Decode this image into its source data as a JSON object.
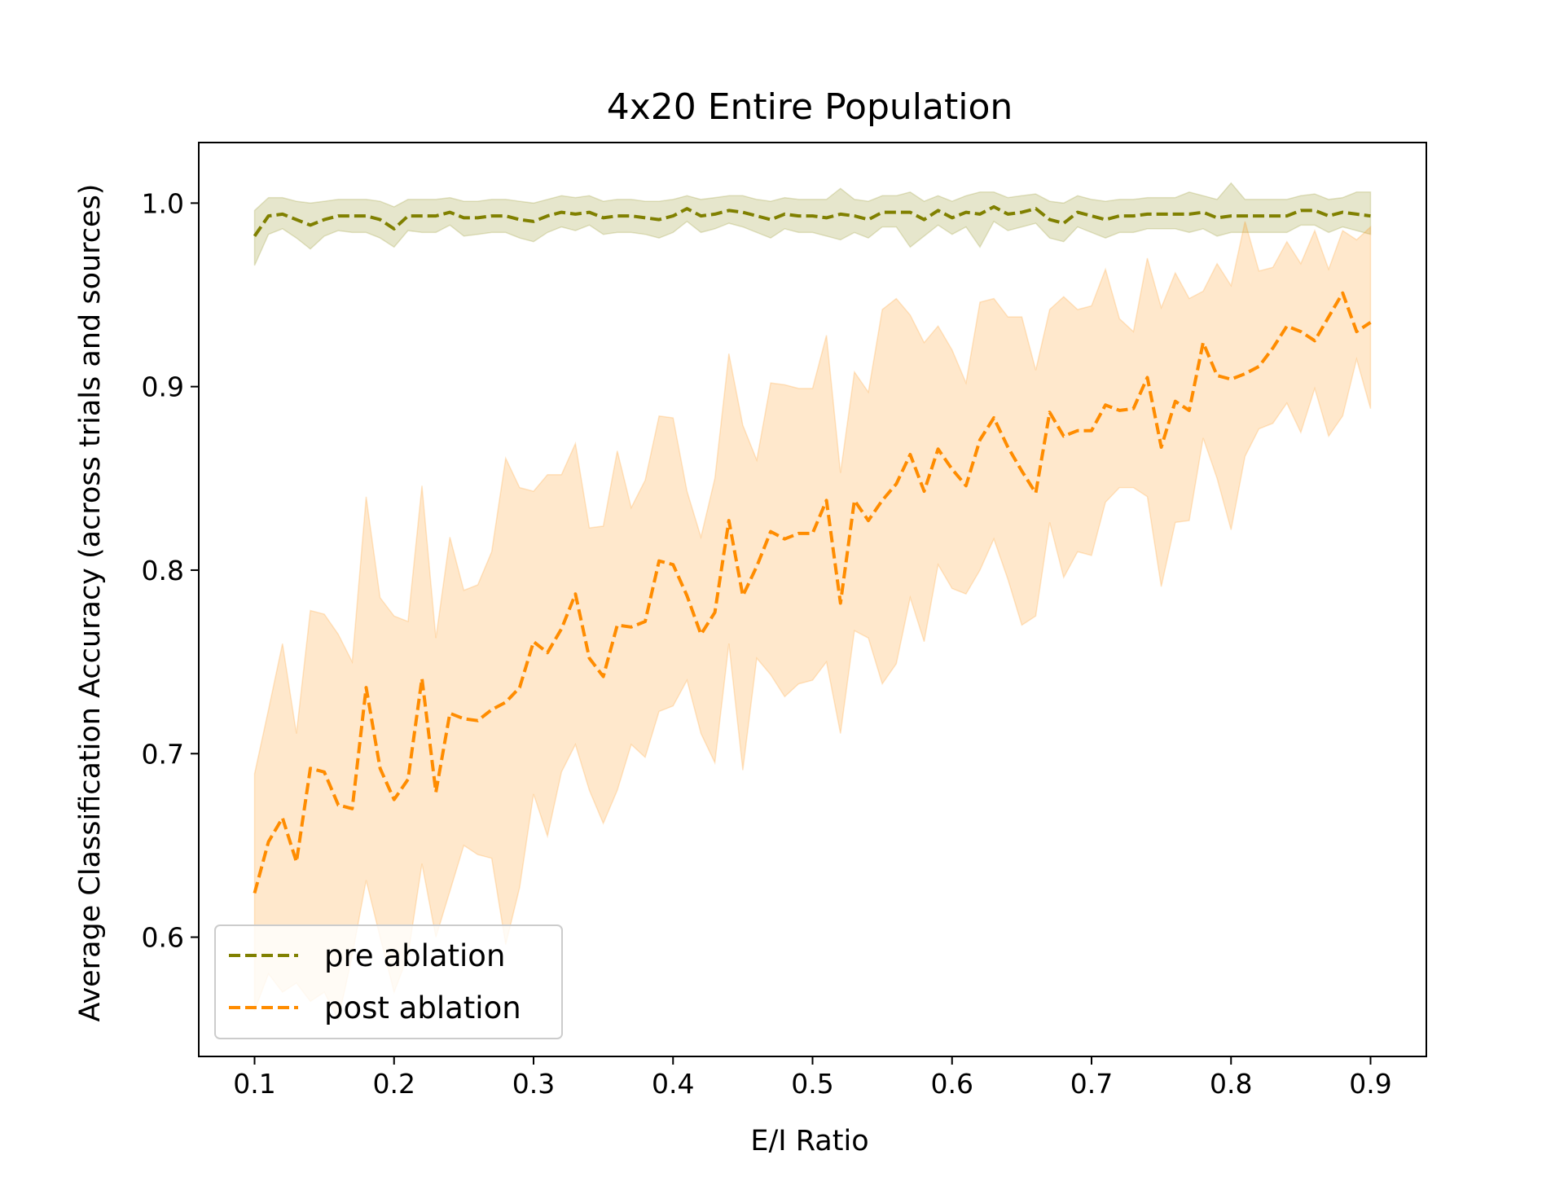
{
  "chart_data": {
    "type": "line",
    "title": "4x20 Entire Population",
    "xlabel": "E/I Ratio",
    "ylabel": "Average Classification Accuracy (across trials and sources)",
    "xlim": [
      0.06,
      0.94
    ],
    "ylim": [
      0.535,
      1.033
    ],
    "xticks": [
      "0.1",
      "0.2",
      "0.3",
      "0.4",
      "0.5",
      "0.6",
      "0.7",
      "0.8",
      "0.9"
    ],
    "yticks": [
      "0.6",
      "0.7",
      "0.8",
      "0.9",
      "1.0"
    ],
    "grid": false,
    "legend_position": "lower-left",
    "colors": {
      "pre": "#808000",
      "post": "#ff8c00"
    },
    "x": [
      0.1,
      0.11,
      0.12,
      0.13,
      0.14,
      0.15,
      0.16,
      0.17,
      0.18,
      0.19,
      0.2,
      0.21,
      0.22,
      0.23,
      0.24,
      0.25,
      0.26,
      0.27,
      0.28,
      0.29,
      0.3,
      0.31,
      0.32,
      0.33,
      0.34,
      0.35,
      0.36,
      0.37,
      0.38,
      0.39,
      0.4,
      0.41,
      0.42,
      0.43,
      0.44,
      0.45,
      0.46,
      0.47,
      0.48,
      0.49,
      0.5,
      0.51,
      0.52,
      0.53,
      0.54,
      0.55,
      0.56,
      0.57,
      0.58,
      0.59,
      0.6,
      0.61,
      0.62,
      0.63,
      0.64,
      0.65,
      0.66,
      0.67,
      0.68,
      0.69,
      0.7,
      0.71,
      0.72,
      0.73,
      0.74,
      0.75,
      0.76,
      0.77,
      0.78,
      0.79,
      0.8,
      0.81,
      0.82,
      0.83,
      0.84,
      0.85,
      0.86,
      0.87,
      0.88,
      0.89,
      0.9
    ],
    "series": [
      {
        "name": "pre ablation",
        "style": "dashed",
        "values": [
          0.982,
          0.993,
          0.994,
          0.991,
          0.988,
          0.991,
          0.993,
          0.993,
          0.993,
          0.991,
          0.986,
          0.993,
          0.993,
          0.993,
          0.995,
          0.992,
          0.992,
          0.993,
          0.993,
          0.991,
          0.99,
          0.993,
          0.995,
          0.994,
          0.995,
          0.992,
          0.993,
          0.993,
          0.992,
          0.991,
          0.993,
          0.997,
          0.993,
          0.994,
          0.996,
          0.995,
          0.993,
          0.991,
          0.994,
          0.993,
          0.993,
          0.992,
          0.994,
          0.993,
          0.991,
          0.995,
          0.995,
          0.995,
          0.991,
          0.996,
          0.992,
          0.995,
          0.994,
          0.998,
          0.994,
          0.995,
          0.997,
          0.991,
          0.989,
          0.995,
          0.993,
          0.991,
          0.993,
          0.993,
          0.994,
          0.994,
          0.994,
          0.994,
          0.995,
          0.992,
          0.993,
          0.993,
          0.993,
          0.993,
          0.993,
          0.996,
          0.996,
          0.993,
          0.995,
          0.994,
          0.993
        ],
        "lower": [
          0.966,
          0.983,
          0.986,
          0.981,
          0.975,
          0.982,
          0.985,
          0.984,
          0.984,
          0.981,
          0.976,
          0.985,
          0.984,
          0.984,
          0.988,
          0.982,
          0.983,
          0.984,
          0.984,
          0.981,
          0.979,
          0.984,
          0.987,
          0.985,
          0.988,
          0.983,
          0.984,
          0.984,
          0.983,
          0.981,
          0.984,
          0.99,
          0.984,
          0.986,
          0.989,
          0.987,
          0.984,
          0.981,
          0.986,
          0.984,
          0.984,
          0.982,
          0.98,
          0.984,
          0.981,
          0.987,
          0.987,
          0.976,
          0.982,
          0.988,
          0.983,
          0.987,
          0.976,
          0.99,
          0.985,
          0.987,
          0.989,
          0.981,
          0.979,
          0.987,
          0.984,
          0.981,
          0.984,
          0.984,
          0.986,
          0.986,
          0.986,
          0.984,
          0.986,
          0.982,
          0.984,
          0.984,
          0.984,
          0.984,
          0.984,
          0.988,
          0.988,
          0.984,
          0.987,
          0.985,
          0.983
        ],
        "upper": [
          0.996,
          1.003,
          1.003,
          1.001,
          1.0,
          1.001,
          1.002,
          1.002,
          1.002,
          1.001,
          0.998,
          1.002,
          1.002,
          1.002,
          1.003,
          1.001,
          1.001,
          1.002,
          1.002,
          1.001,
          1.0,
          1.002,
          1.004,
          1.003,
          1.004,
          1.001,
          1.002,
          1.002,
          1.001,
          1.001,
          1.002,
          1.004,
          1.002,
          1.003,
          1.004,
          1.004,
          1.002,
          1.001,
          1.003,
          1.002,
          1.002,
          1.002,
          1.008,
          1.002,
          1.001,
          1.004,
          1.004,
          1.006,
          1.001,
          1.004,
          1.001,
          1.004,
          1.006,
          1.006,
          1.003,
          1.004,
          1.005,
          1.001,
          1.0,
          1.004,
          1.002,
          1.001,
          1.002,
          1.002,
          1.003,
          1.003,
          1.003,
          1.006,
          1.004,
          1.002,
          1.011,
          1.002,
          1.002,
          1.002,
          1.002,
          1.004,
          1.005,
          1.002,
          1.003,
          1.006,
          1.006
        ]
      },
      {
        "name": "post ablation",
        "style": "dashed",
        "values": [
          0.624,
          0.652,
          0.665,
          0.641,
          0.692,
          0.69,
          0.672,
          0.67,
          0.736,
          0.692,
          0.675,
          0.686,
          0.741,
          0.679,
          0.722,
          0.719,
          0.718,
          0.724,
          0.728,
          0.736,
          0.761,
          0.755,
          0.768,
          0.787,
          0.752,
          0.742,
          0.77,
          0.769,
          0.772,
          0.805,
          0.803,
          0.786,
          0.765,
          0.777,
          0.827,
          0.786,
          0.802,
          0.821,
          0.817,
          0.82,
          0.82,
          0.838,
          0.782,
          0.838,
          0.827,
          0.838,
          0.847,
          0.863,
          0.843,
          0.866,
          0.855,
          0.846,
          0.871,
          0.883,
          0.867,
          0.854,
          0.842,
          0.886,
          0.873,
          0.876,
          0.876,
          0.89,
          0.887,
          0.888,
          0.905,
          0.867,
          0.892,
          0.887,
          0.924,
          0.906,
          0.904,
          0.907,
          0.911,
          0.921,
          0.933,
          0.93,
          0.925,
          0.938,
          0.951,
          0.93,
          0.935
        ],
        "lower": [
          0.56,
          0.58,
          0.57,
          0.575,
          0.565,
          0.57,
          0.555,
          0.59,
          0.631,
          0.6,
          0.57,
          0.59,
          0.64,
          0.6,
          0.625,
          0.65,
          0.645,
          0.643,
          0.596,
          0.627,
          0.678,
          0.655,
          0.69,
          0.705,
          0.68,
          0.662,
          0.68,
          0.705,
          0.698,
          0.723,
          0.726,
          0.74,
          0.711,
          0.695,
          0.76,
          0.691,
          0.752,
          0.743,
          0.731,
          0.738,
          0.74,
          0.75,
          0.711,
          0.767,
          0.763,
          0.738,
          0.749,
          0.785,
          0.761,
          0.803,
          0.79,
          0.787,
          0.8,
          0.817,
          0.795,
          0.77,
          0.775,
          0.826,
          0.796,
          0.81,
          0.808,
          0.837,
          0.845,
          0.845,
          0.84,
          0.791,
          0.826,
          0.827,
          0.872,
          0.85,
          0.822,
          0.862,
          0.877,
          0.88,
          0.891,
          0.875,
          0.899,
          0.873,
          0.884,
          0.915,
          0.888
        ],
        "upper": [
          0.689,
          0.724,
          0.76,
          0.711,
          0.778,
          0.776,
          0.765,
          0.75,
          0.84,
          0.785,
          0.775,
          0.772,
          0.846,
          0.763,
          0.818,
          0.789,
          0.792,
          0.81,
          0.861,
          0.845,
          0.843,
          0.852,
          0.852,
          0.869,
          0.823,
          0.824,
          0.865,
          0.834,
          0.849,
          0.884,
          0.883,
          0.843,
          0.818,
          0.85,
          0.918,
          0.879,
          0.86,
          0.902,
          0.901,
          0.899,
          0.899,
          0.928,
          0.853,
          0.908,
          0.897,
          0.942,
          0.948,
          0.939,
          0.924,
          0.933,
          0.92,
          0.902,
          0.946,
          0.948,
          0.938,
          0.938,
          0.909,
          0.942,
          0.949,
          0.942,
          0.944,
          0.964,
          0.937,
          0.93,
          0.97,
          0.943,
          0.962,
          0.948,
          0.952,
          0.967,
          0.955,
          0.99,
          0.963,
          0.965,
          0.979,
          0.967,
          0.985,
          0.964,
          0.985,
          0.98,
          0.987
        ]
      }
    ]
  }
}
